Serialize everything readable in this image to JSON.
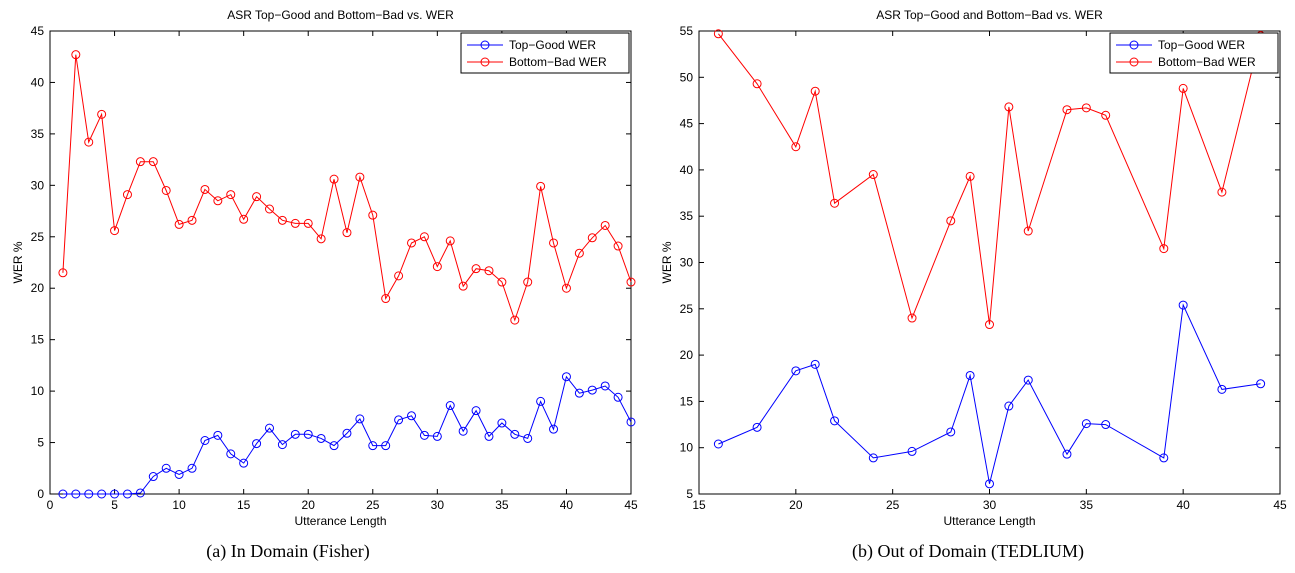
{
  "chart_data": [
    {
      "type": "line",
      "title": "ASR Top−Good and Bottom−Bad vs. WER",
      "xlabel": "Utterance Length",
      "ylabel": "WER %",
      "xlim": [
        0,
        45
      ],
      "ylim": [
        0,
        45
      ],
      "xticks": [
        0,
        5,
        10,
        15,
        20,
        25,
        30,
        35,
        40,
        45
      ],
      "yticks": [
        0,
        5,
        10,
        15,
        20,
        25,
        30,
        35,
        40,
        45
      ],
      "legend_position": "top-right",
      "caption": "(a) In Domain (Fisher)",
      "series": [
        {
          "name": "Top−Good WER",
          "color": "#0000ff",
          "x": [
            1,
            2,
            3,
            4,
            5,
            6,
            7,
            8,
            9,
            10,
            11,
            12,
            13,
            14,
            15,
            16,
            17,
            18,
            19,
            20,
            21,
            22,
            23,
            24,
            25,
            26,
            27,
            28,
            29,
            30,
            31,
            32,
            33,
            34,
            35,
            36,
            37,
            38,
            39,
            40,
            41,
            42,
            43,
            44,
            45
          ],
          "values": [
            0,
            0,
            0,
            0,
            0,
            0,
            0.1,
            1.7,
            2.5,
            1.9,
            2.5,
            5.2,
            5.7,
            3.9,
            3.0,
            4.9,
            6.4,
            4.8,
            5.8,
            5.8,
            5.4,
            4.7,
            5.9,
            7.3,
            4.7,
            4.7,
            7.2,
            7.6,
            5.7,
            5.6,
            8.6,
            6.1,
            8.1,
            5.6,
            6.9,
            5.8,
            5.4,
            9.0,
            6.3,
            11.4,
            9.8,
            10.1,
            10.5,
            9.4,
            7.0
          ]
        },
        {
          "name": "Bottom−Bad WER",
          "color": "#ff0000",
          "x": [
            1,
            2,
            3,
            4,
            5,
            6,
            7,
            8,
            9,
            10,
            11,
            12,
            13,
            14,
            15,
            16,
            17,
            18,
            19,
            20,
            21,
            22,
            23,
            24,
            25,
            26,
            27,
            28,
            29,
            30,
            31,
            32,
            33,
            34,
            35,
            36,
            37,
            38,
            39,
            40,
            41,
            42,
            43,
            44,
            45
          ],
          "values": [
            21.5,
            42.7,
            34.2,
            36.9,
            25.6,
            29.1,
            32.3,
            32.3,
            29.5,
            26.2,
            26.6,
            29.6,
            28.5,
            29.1,
            26.7,
            28.9,
            27.7,
            26.6,
            26.3,
            26.3,
            24.8,
            30.6,
            25.4,
            30.8,
            27.1,
            19.0,
            21.2,
            24.4,
            25.0,
            22.1,
            24.6,
            20.2,
            21.9,
            21.7,
            20.6,
            16.9,
            20.6,
            29.9,
            24.4,
            20.0,
            23.4,
            24.9,
            26.1,
            24.1,
            20.6
          ]
        }
      ]
    },
    {
      "type": "line",
      "title": "ASR Top−Good and Bottom−Bad vs. WER",
      "xlabel": "Utterance Length",
      "ylabel": "WER %",
      "xlim": [
        15,
        45
      ],
      "ylim": [
        5,
        55
      ],
      "xticks": [
        15,
        20,
        25,
        30,
        35,
        40,
        45
      ],
      "yticks": [
        5,
        10,
        15,
        20,
        25,
        30,
        35,
        40,
        45,
        50,
        55
      ],
      "legend_position": "top-right",
      "caption": "(b) Out of Domain (TEDLIUM)",
      "series": [
        {
          "name": "Top−Good WER",
          "color": "#0000ff",
          "x": [
            16,
            18,
            20,
            21,
            22,
            24,
            26,
            28,
            29,
            30,
            31,
            32,
            34,
            35,
            36,
            39,
            40,
            42,
            44
          ],
          "values": [
            10.4,
            12.2,
            18.3,
            19.0,
            12.9,
            8.9,
            9.6,
            11.7,
            17.8,
            6.1,
            14.5,
            17.3,
            9.3,
            12.6,
            12.5,
            8.9,
            25.4,
            16.3,
            16.9
          ]
        },
        {
          "name": "Bottom−Bad WER",
          "color": "#ff0000",
          "x": [
            16,
            18,
            20,
            21,
            22,
            24,
            26,
            28,
            29,
            30,
            31,
            32,
            34,
            35,
            36,
            39,
            40,
            42,
            44
          ],
          "values": [
            54.7,
            49.3,
            42.5,
            48.5,
            36.4,
            39.5,
            24.0,
            34.5,
            39.3,
            23.3,
            46.8,
            33.4,
            46.5,
            46.7,
            45.9,
            31.5,
            48.8,
            37.6,
            54.5
          ]
        }
      ]
    }
  ]
}
